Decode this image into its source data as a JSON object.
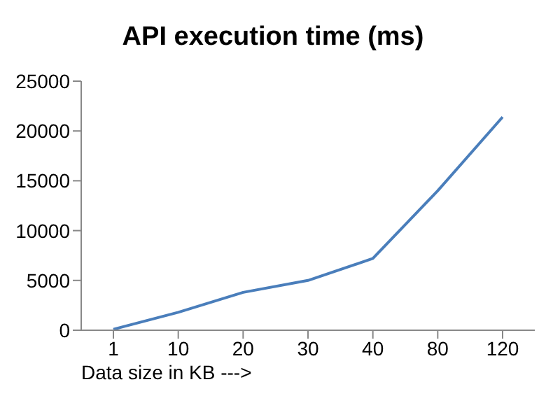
{
  "chart_data": {
    "type": "line",
    "title": "API execution time (ms)",
    "xlabel": "Data size in KB --->",
    "categories": [
      "1",
      "10",
      "20",
      "30",
      "40",
      "80",
      "120"
    ],
    "values": [
      100,
      1800,
      3800,
      5000,
      7200,
      14000,
      21400
    ],
    "color": "#4a7ebb",
    "ylim": [
      0,
      25000
    ],
    "yticks": [
      0,
      5000,
      10000,
      15000,
      20000,
      25000
    ]
  }
}
